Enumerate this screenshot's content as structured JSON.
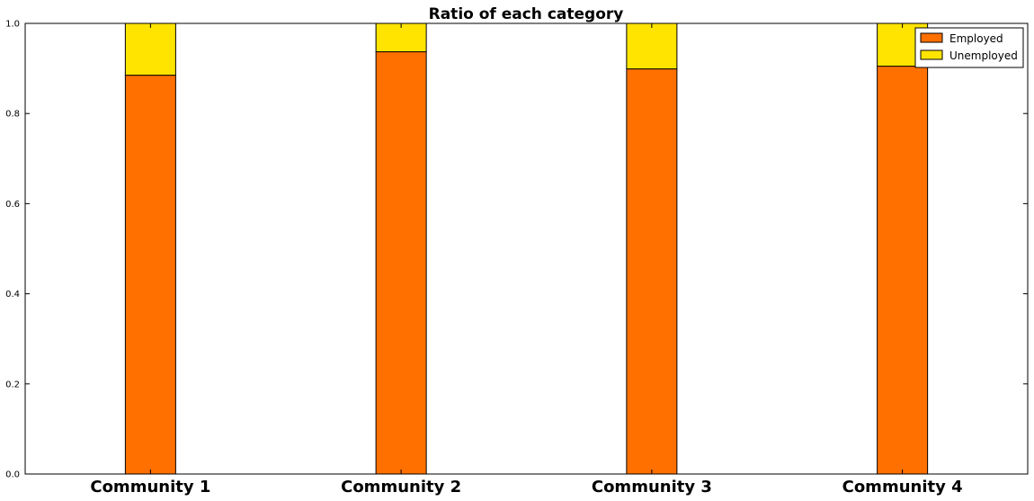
{
  "chart_data": {
    "type": "bar",
    "stacked": true,
    "title": "Ratio of each category",
    "xlabel": "",
    "ylabel": "",
    "categories": [
      "Community 1",
      "Community 2",
      "Community 3",
      "Community 4"
    ],
    "series": [
      {
        "name": "Employed",
        "color": "#ff7000",
        "values": [
          0.885,
          0.937,
          0.899,
          0.905
        ]
      },
      {
        "name": "Unemployed",
        "color": "#ffe400",
        "values": [
          0.115,
          0.063,
          0.101,
          0.095
        ]
      }
    ],
    "ylim": [
      0,
      1.0
    ],
    "yticks": [
      "0.0",
      "0.2",
      "0.4",
      "0.6",
      "0.8",
      "1.0"
    ],
    "grid": false,
    "legend_position": "top-right"
  }
}
